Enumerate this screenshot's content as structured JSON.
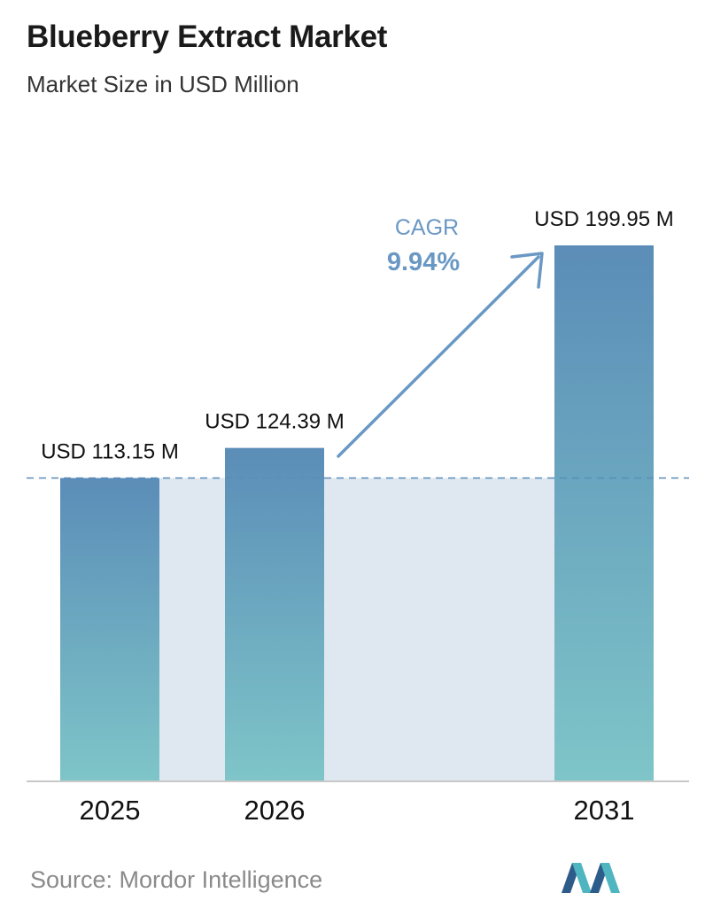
{
  "title": "Blueberry Extract Market",
  "subtitle": "Market Size in USD Million",
  "chart_data": {
    "type": "bar",
    "categories": [
      "2025",
      "2026",
      "2031"
    ],
    "values": [
      113.15,
      124.39,
      199.95
    ],
    "value_labels": [
      "USD 113.15 M",
      "USD 124.39 M",
      "USD 199.95 M"
    ],
    "ylim": [
      0,
      199.95
    ],
    "grid": false,
    "reference_line_value": 113.15,
    "colors": {
      "bar_top": "#5b8db8",
      "bar_bottom": "#7ec5c8",
      "band": "#dfe8f1",
      "reference_line": "#5b8db8",
      "axis": "#c8c8c8",
      "cagr": "#6a98c4"
    }
  },
  "cagr": {
    "label": "CAGR",
    "value": "9.94%"
  },
  "source": "Source:  Mordor Intelligence"
}
